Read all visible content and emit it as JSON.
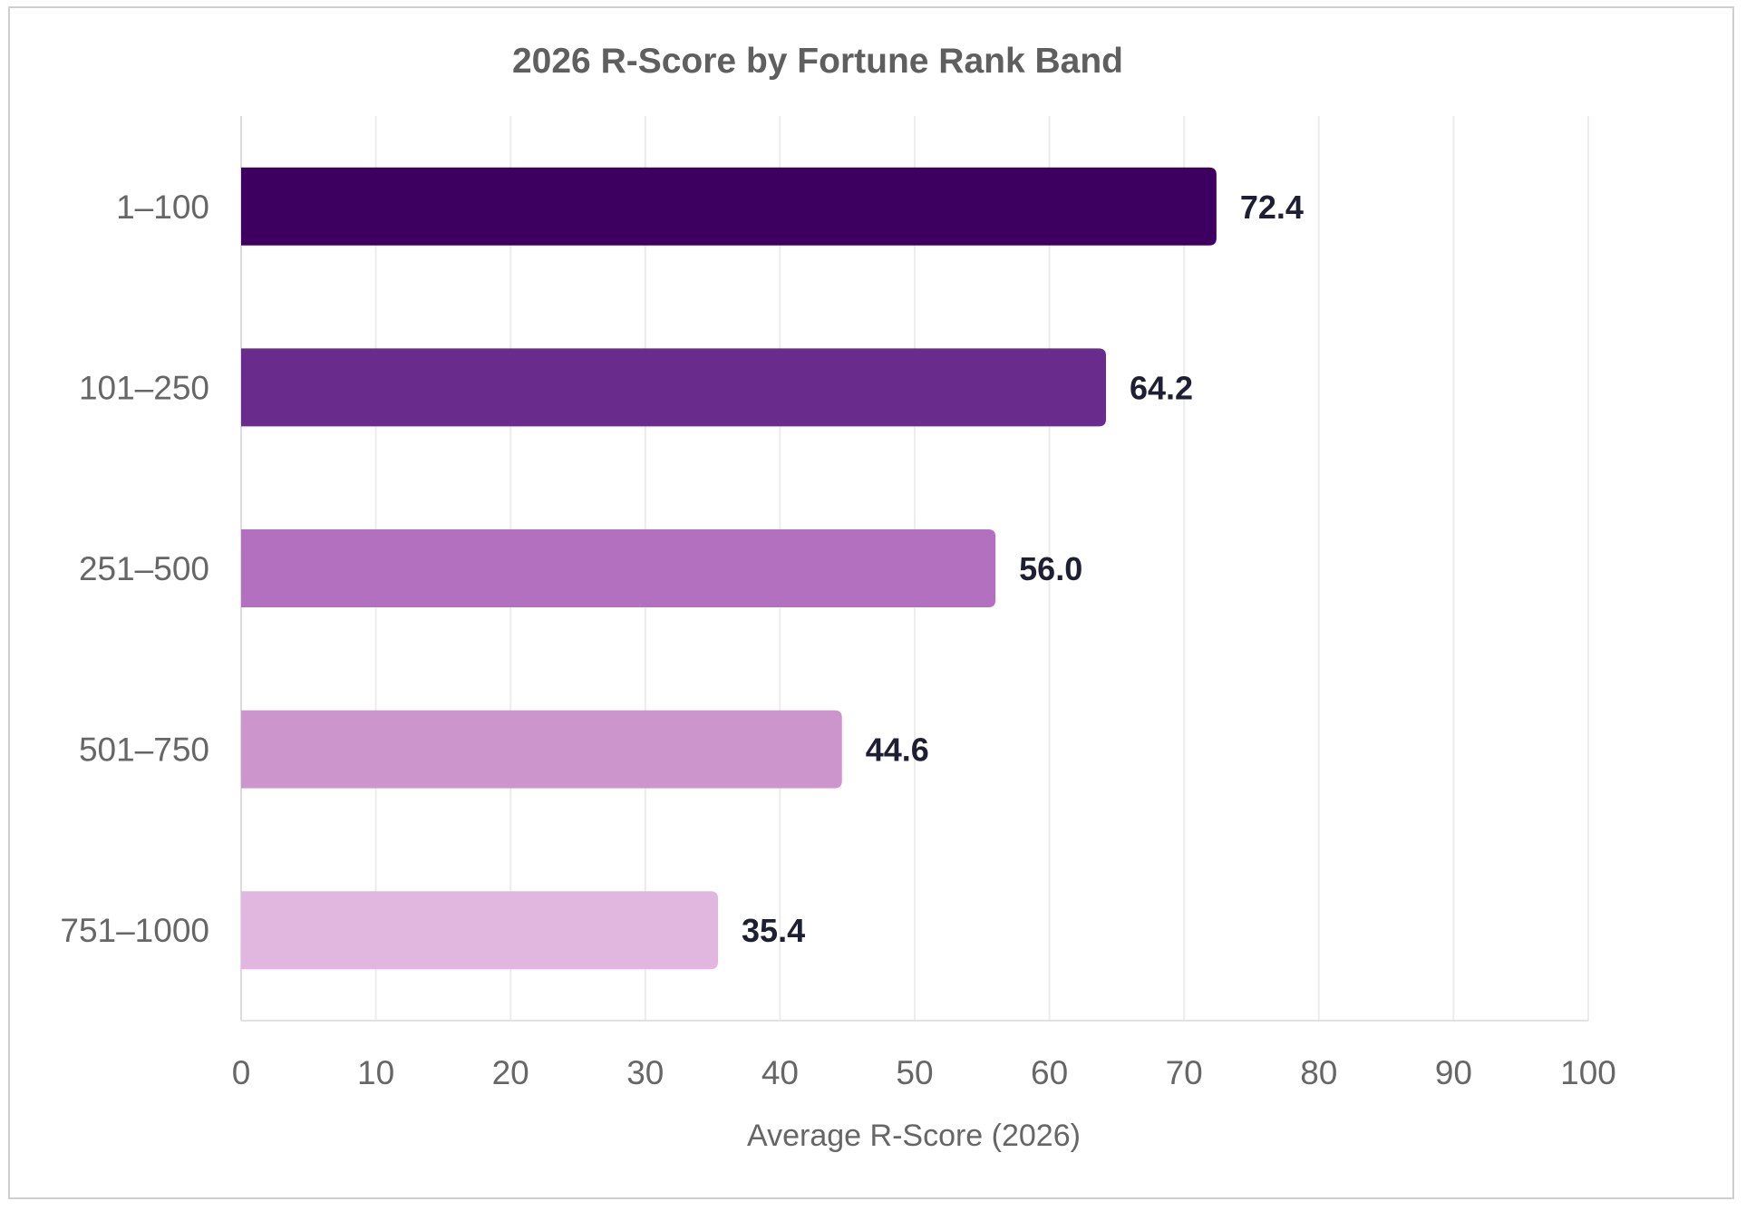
{
  "chart_data": {
    "type": "bar",
    "orientation": "horizontal",
    "title": "2026 R-Score by Fortune Rank Band",
    "xlabel": "Average R-Score (2026)",
    "ylabel": "",
    "categories": [
      "1–100",
      "101–250",
      "251–500",
      "501–750",
      "751–1000"
    ],
    "values": [
      72.4,
      64.2,
      56.0,
      44.6,
      35.4
    ],
    "value_labels": [
      "72.4",
      "64.2",
      "56.0",
      "44.6",
      "35.4"
    ],
    "colors": [
      "#3d0060",
      "#6a2c8c",
      "#b370be",
      "#cc96cc",
      "#e1b7e0"
    ],
    "xlim": [
      0,
      100
    ],
    "xticks": [
      0,
      10,
      20,
      30,
      40,
      50,
      60,
      70,
      80,
      90,
      100
    ],
    "grid": true,
    "legend": "none"
  }
}
